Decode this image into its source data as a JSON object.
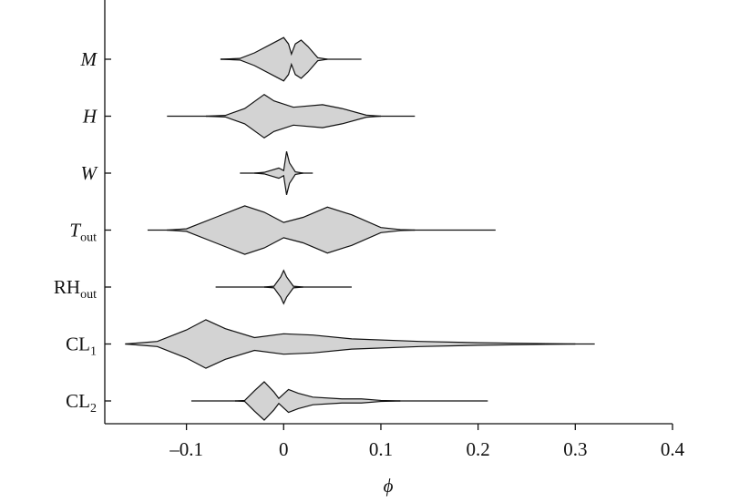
{
  "chart_data": {
    "type": "violin",
    "xlabel": "ϕ",
    "xlim": [
      -0.184,
      0.4
    ],
    "xticks": [
      {
        "value": -0.1,
        "label": "–0.1"
      },
      0,
      0.1,
      0.2,
      0.3,
      0.4
    ],
    "color": "#d3d3d3",
    "categories": [
      {
        "text": "M",
        "italic": true
      },
      {
        "text": "H",
        "italic": true
      },
      {
        "text": "W",
        "italic": true
      },
      {
        "text": "T",
        "sub": "out",
        "italic": true
      },
      {
        "text": "RH",
        "sub": "out",
        "italic": false
      },
      {
        "text": "CL",
        "sub": "1",
        "italic": false
      },
      {
        "text": "CL",
        "sub": "2",
        "italic": false
      }
    ],
    "violins": [
      {
        "range": [
          -0.065,
          0.08
        ],
        "x": [
          -0.065,
          -0.045,
          -0.03,
          -0.01,
          0,
          0.005,
          0.008,
          0.012,
          0.018,
          0.025,
          0.035,
          0.045
        ],
        "density": [
          0,
          0.03,
          0.25,
          0.65,
          0.85,
          0.6,
          0.2,
          0.6,
          0.75,
          0.5,
          0.06,
          0
        ]
      },
      {
        "range": [
          -0.12,
          0.135
        ],
        "x": [
          -0.08,
          -0.06,
          -0.04,
          -0.02,
          -0.01,
          0.01,
          0.04,
          0.06,
          0.085,
          0.1
        ],
        "density": [
          0,
          0.03,
          0.3,
          0.85,
          0.6,
          0.35,
          0.45,
          0.3,
          0.04,
          0
        ]
      },
      {
        "range": [
          -0.045,
          0.03
        ],
        "x": [
          -0.03,
          -0.02,
          -0.005,
          0,
          0.003,
          0.006,
          0.012,
          0.02
        ],
        "density": [
          0,
          0.03,
          0.2,
          0.1,
          0.85,
          0.4,
          0.05,
          0
        ]
      },
      {
        "range": [
          -0.14,
          0.218
        ],
        "x": [
          -0.12,
          -0.1,
          -0.07,
          -0.04,
          -0.02,
          0,
          0.02,
          0.045,
          0.07,
          0.1,
          0.12,
          0.135
        ],
        "density": [
          0,
          0.05,
          0.5,
          0.95,
          0.7,
          0.3,
          0.5,
          0.9,
          0.6,
          0.1,
          0.02,
          0
        ]
      },
      {
        "range": [
          -0.07,
          0.07
        ],
        "x": [
          -0.02,
          -0.01,
          -0.003,
          0,
          0.003,
          0.01,
          0.02
        ],
        "density": [
          0,
          0.03,
          0.4,
          0.65,
          0.4,
          0.03,
          0
        ]
      },
      {
        "range": [
          -0.163,
          0.32
        ],
        "x": [
          -0.163,
          -0.13,
          -0.1,
          -0.08,
          -0.06,
          -0.03,
          0,
          0.03,
          0.07,
          0.14,
          0.2,
          0.26,
          0.3
        ],
        "density": [
          0,
          0.1,
          0.55,
          0.95,
          0.6,
          0.25,
          0.4,
          0.35,
          0.2,
          0.1,
          0.05,
          0.02,
          0
        ]
      },
      {
        "range": [
          -0.095,
          0.21
        ],
        "x": [
          -0.05,
          -0.04,
          -0.03,
          -0.02,
          -0.01,
          -0.005,
          0.005,
          0.015,
          0.03,
          0.06,
          0.08,
          0.1,
          0.12
        ],
        "density": [
          0,
          0.02,
          0.4,
          0.75,
          0.35,
          0.1,
          0.45,
          0.3,
          0.15,
          0.08,
          0.08,
          0.02,
          0
        ]
      }
    ]
  }
}
